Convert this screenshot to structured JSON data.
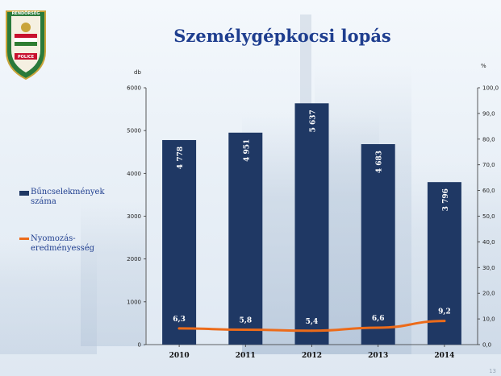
{
  "slide": {
    "title": "Személygépkocsi lopás",
    "badge": {
      "top_text": "RENDŐRSÉG",
      "bottom_text": "POLICE"
    },
    "page_number": "13"
  },
  "legend": {
    "bar_label_line1": "Bűncselekmények",
    "bar_label_line2": "száma",
    "line_label_line1": "Nyomozás-",
    "line_label_line2": "eredményesség"
  },
  "colors": {
    "bar": "#1f3864",
    "line": "#ec6b1a",
    "title": "#1f3e8f"
  },
  "chart_data": {
    "type": "bar",
    "categories": [
      "2010",
      "2011",
      "2012",
      "2013",
      "2014"
    ],
    "series": [
      {
        "name": "Bűncselekmények száma",
        "type": "bar",
        "axis": "left",
        "values": [
          4778,
          4951,
          5637,
          4683,
          3796
        ],
        "labels": [
          "4 778",
          "4 951",
          "5 637",
          "4 683",
          "3 796"
        ]
      },
      {
        "name": "Nyomozás-eredményesség",
        "type": "line",
        "axis": "right",
        "values": [
          6.3,
          5.8,
          5.4,
          6.6,
          9.2
        ],
        "labels": [
          "6,3",
          "5,8",
          "5,4",
          "6,6",
          "9,2"
        ]
      }
    ],
    "y_left": {
      "label": "db",
      "min": 0,
      "max": 6000,
      "ticks": [
        0,
        1000,
        2000,
        3000,
        4000,
        5000,
        6000
      ],
      "tick_labels": [
        "0",
        "1000",
        "2000",
        "3000",
        "4000",
        "5000",
        "6000"
      ]
    },
    "y_right": {
      "label": "%",
      "min": 0,
      "max": 100,
      "ticks": [
        0,
        10,
        20,
        30,
        40,
        50,
        60,
        70,
        80,
        90,
        100
      ],
      "tick_labels": [
        "0,0",
        "10,0",
        "20,0",
        "30,0",
        "40,0",
        "50,0",
        "60,0",
        "70,0",
        "80,0",
        "90,0",
        "100,0"
      ]
    },
    "grid": false,
    "legend_position": "left"
  }
}
